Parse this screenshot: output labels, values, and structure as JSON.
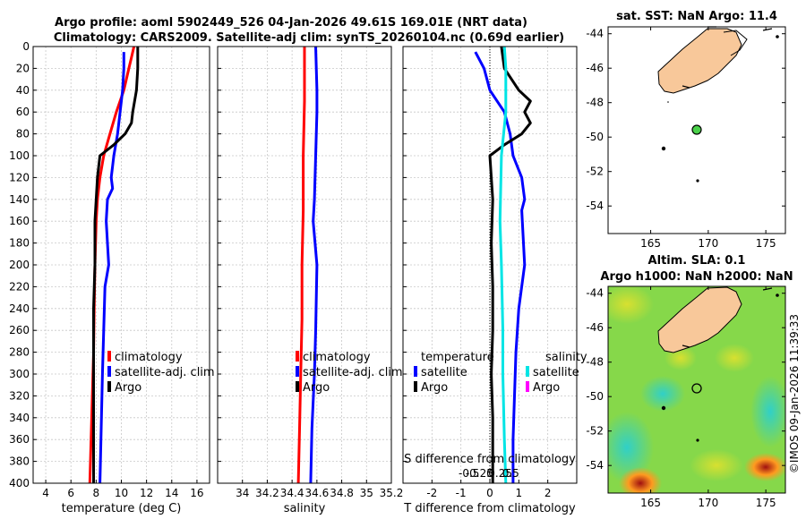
{
  "header": {
    "title_line1": "Argo profile: aoml 5902449_526 04-Jan-2026 49.61S 169.01E (NRT data)",
    "title_line2": "Climatology: CARS2009. Satellite-adj clim: synTS_20260104.nc (0.69d earlier)"
  },
  "colors": {
    "climatology": "#ff0000",
    "satellite": "#0000ff",
    "argo": "#000000",
    "sal_satellite": "#00e5e5",
    "sal_argo": "#ff00ff",
    "land": "#f8c89a",
    "map_bg": "#ffffff"
  },
  "chart_data": [
    {
      "id": "temperature",
      "type": "line",
      "xlabel": "temperature (deg C)",
      "ylabel": "",
      "xlim": [
        3,
        17
      ],
      "ylim": [
        400,
        0
      ],
      "xticks": [
        4,
        6,
        8,
        10,
        12,
        14,
        16
      ],
      "yticks": [
        0,
        20,
        40,
        60,
        80,
        100,
        120,
        140,
        160,
        180,
        200,
        220,
        240,
        260,
        280,
        300,
        320,
        340,
        360,
        380,
        400
      ],
      "legend": [
        "climatology",
        "satellite-adj. clim",
        "Argo"
      ],
      "series": [
        {
          "name": "climatology",
          "color": "#ff0000",
          "depth": [
            0,
            10,
            20,
            40,
            60,
            80,
            100,
            120,
            140,
            160,
            200,
            240,
            280,
            320,
            360,
            400
          ],
          "values": [
            11.0,
            10.8,
            10.6,
            10.2,
            9.6,
            9.1,
            8.6,
            8.3,
            8.1,
            8.0,
            7.9,
            7.85,
            7.8,
            7.7,
            7.6,
            7.5
          ]
        },
        {
          "name": "satellite-adj. clim",
          "color": "#0000ff",
          "depth": [
            5,
            20,
            40,
            60,
            80,
            100,
            120,
            130,
            140,
            160,
            180,
            200,
            220,
            260,
            300,
            350,
            400
          ],
          "values": [
            10.2,
            10.2,
            10.1,
            9.9,
            9.7,
            9.4,
            9.2,
            9.3,
            8.9,
            8.8,
            8.9,
            9.0,
            8.7,
            8.6,
            8.5,
            8.4,
            8.3
          ]
        },
        {
          "name": "Argo",
          "color": "#000000",
          "depth": [
            0,
            20,
            40,
            60,
            70,
            80,
            90,
            100,
            120,
            160,
            200,
            240,
            280,
            300,
            340,
            400
          ],
          "values": [
            11.3,
            11.3,
            11.2,
            10.9,
            10.8,
            10.3,
            9.4,
            8.3,
            8.1,
            7.9,
            7.9,
            7.8,
            7.8,
            7.8,
            7.8,
            7.8
          ]
        }
      ]
    },
    {
      "id": "salinity",
      "type": "line",
      "xlabel": "salinity",
      "xlim": [
        33.8,
        35.2
      ],
      "ylim": [
        400,
        0
      ],
      "xticks": [
        34,
        34.2,
        34.4,
        34.6,
        34.8,
        35,
        35.2
      ],
      "xticklabels": [
        "34",
        "34.2",
        "34.4",
        "34.6",
        "34.8",
        "35",
        "35.2"
      ],
      "legend": [
        "climatology",
        "satellite-adj. clim",
        "Argo"
      ],
      "series": [
        {
          "name": "climatology",
          "color": "#ff0000",
          "depth": [
            0,
            50,
            100,
            150,
            200,
            250,
            300,
            350,
            400
          ],
          "values": [
            34.5,
            34.5,
            34.49,
            34.49,
            34.48,
            34.48,
            34.47,
            34.46,
            34.45
          ]
        },
        {
          "name": "satellite-adj. clim",
          "color": "#0000ff",
          "depth": [
            0,
            40,
            60,
            100,
            140,
            160,
            200,
            260,
            300,
            350,
            400
          ],
          "values": [
            34.59,
            34.6,
            34.6,
            34.59,
            34.58,
            34.57,
            34.6,
            34.59,
            34.58,
            34.56,
            34.55
          ]
        }
      ]
    },
    {
      "id": "difference",
      "type": "line",
      "xlabel": "T difference from climatology",
      "xlabel_top": "S difference from climatology",
      "xlim": [
        -3,
        3
      ],
      "ylim": [
        400,
        0
      ],
      "xticks": [
        -2,
        -1,
        0,
        1,
        2
      ],
      "xticks_top": [
        -0.5,
        -0.25,
        0,
        0.25,
        0.5
      ],
      "xticklabels_top": [
        "-0.5",
        "-0.25",
        "0",
        "0.25",
        "0.5"
      ],
      "legend_temperature": [
        "temperature",
        "satellite",
        "Argo"
      ],
      "legend_salinity": [
        "salinity",
        "satellite",
        "Argo"
      ],
      "series": [
        {
          "name": "T satellite",
          "color": "#0000ff",
          "depth": [
            5,
            20,
            40,
            60,
            80,
            100,
            120,
            140,
            150,
            200,
            240,
            280,
            320,
            360,
            400
          ],
          "values": [
            -0.5,
            -0.2,
            0.0,
            0.5,
            0.7,
            0.8,
            1.1,
            1.2,
            1.1,
            1.2,
            1.0,
            0.9,
            0.85,
            0.8,
            0.8
          ]
        },
        {
          "name": "T Argo",
          "color": "#000000",
          "depth": [
            0,
            20,
            40,
            50,
            60,
            70,
            80,
            90,
            100,
            140,
            180,
            220,
            260,
            300,
            340,
            380,
            400
          ],
          "values": [
            0.4,
            0.5,
            1.0,
            1.4,
            1.2,
            1.4,
            1.1,
            0.5,
            0.0,
            0.1,
            0.05,
            0.1,
            0.1,
            0.05,
            0.1,
            0.1,
            0.1
          ]
        },
        {
          "name": "S satellite",
          "color": "#00e5e5",
          "depth": [
            0,
            20,
            60,
            100,
            160,
            200,
            260,
            300,
            360,
            400
          ],
          "values": [
            0.5,
            0.55,
            0.55,
            0.4,
            0.35,
            0.4,
            0.45,
            0.45,
            0.5,
            0.55
          ]
        }
      ]
    }
  ],
  "maps": {
    "sst": {
      "title": "sat. SST: NaN Argo: 11.4",
      "xticks": [
        "165",
        "170",
        "175"
      ],
      "yticks": [
        "-44",
        "-46",
        "-48",
        "-50",
        "-52",
        "-54"
      ],
      "lon": 169.01,
      "lat": -49.61
    },
    "sla": {
      "title1": "Altim. SLA: 0.1",
      "title2": "Argo h1000: NaN h2000: NaN",
      "xticks": [
        "165",
        "170",
        "175"
      ],
      "yticks": [
        "-44",
        "-46",
        "-48",
        "-50",
        "-52",
        "-54"
      ],
      "lon": 169.01,
      "lat": -49.61
    }
  },
  "watermark": "©IMOS 09-Jan-2026 11:39:33"
}
